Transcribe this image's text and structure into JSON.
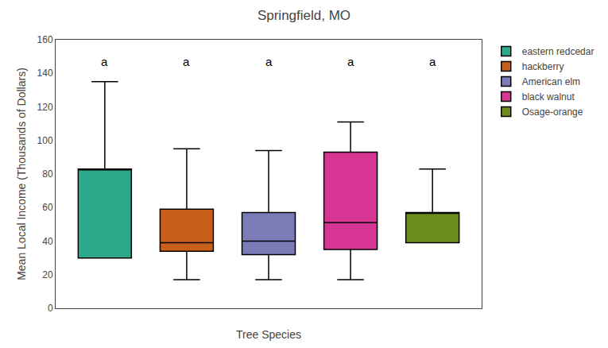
{
  "chart_data": {
    "type": "box",
    "title": "Springfield, MO",
    "xlabel": "Tree Species",
    "ylabel": "Mean Local Income (Thousands of Dollars)",
    "ylim": [
      0,
      160
    ],
    "yticks": [
      0,
      20,
      40,
      60,
      80,
      100,
      120,
      140,
      160
    ],
    "grid": false,
    "legend": "right",
    "tick_labels": "y",
    "series": [
      {
        "name": "eastern redcedar",
        "color": "#2ca98a",
        "q1": 30,
        "median": 83,
        "q3": 83,
        "whisker_low": 30,
        "whisker_high": 135
      },
      {
        "name": "hackberry",
        "color": "#c8601a",
        "q1": 34,
        "median": 39,
        "q3": 59,
        "whisker_low": 17,
        "whisker_high": 95
      },
      {
        "name": "American elm",
        "color": "#7b7bb8",
        "q1": 32,
        "median": 40,
        "q3": 57,
        "whisker_low": 17,
        "whisker_high": 94
      },
      {
        "name": "black walnut",
        "color": "#d63594",
        "q1": 35,
        "median": 51,
        "q3": 93,
        "whisker_low": 17,
        "whisker_high": 111
      },
      {
        "name": "Osage-orange",
        "color": "#6b8c1a",
        "q1": 39,
        "median": 57,
        "q3": 57,
        "whisker_low": 39,
        "whisker_high": 83
      }
    ],
    "annotations": [
      {
        "text": "a",
        "y": 147
      },
      {
        "text": "a",
        "y": 147
      },
      {
        "text": "a",
        "y": 147
      },
      {
        "text": "a",
        "y": 147
      },
      {
        "text": "a",
        "y": 147
      }
    ]
  }
}
